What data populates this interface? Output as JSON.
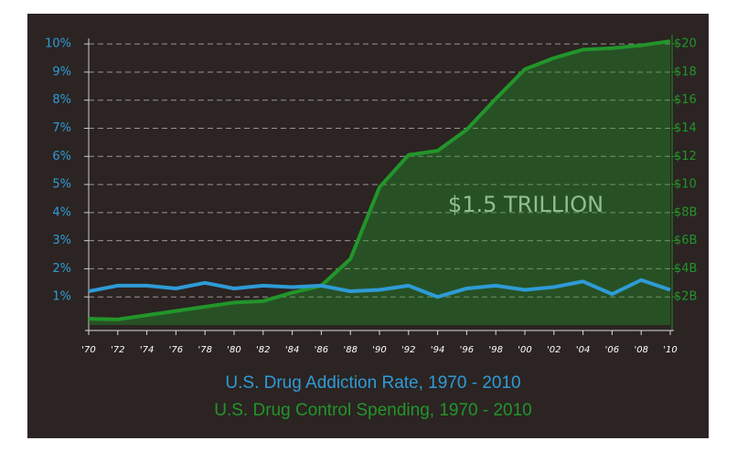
{
  "chart_data": {
    "type": "line",
    "annotation": "$1.5 TRILLION",
    "categories": [
      "'70",
      "'72",
      "'74",
      "'76",
      "'78",
      "'80",
      "'82",
      "'84",
      "'86",
      "'88",
      "'90",
      "'92",
      "'94",
      "'96",
      "'98",
      "'00",
      "'02",
      "'04",
      "'06",
      "'08",
      "'10"
    ],
    "series": [
      {
        "name": "U.S. Drug Addiction Rate, 1970 - 2010",
        "color": "#2f9bd7",
        "values": [
          1.2,
          1.4,
          1.4,
          1.3,
          1.5,
          1.3,
          1.4,
          1.35,
          1.4,
          1.2,
          1.25,
          1.4,
          1.0,
          1.3,
          1.4,
          1.25,
          1.35,
          1.55,
          1.1,
          1.6,
          1.25
        ]
      },
      {
        "name": "U.S. Drug Control Spending, 1970 - 2010",
        "color": "#22952a",
        "axis": "y2",
        "values": [
          0.45,
          0.4,
          0.7,
          1.0,
          1.3,
          1.6,
          1.7,
          2.3,
          2.8,
          4.7,
          9.8,
          12.1,
          12.4,
          13.9,
          16.1,
          18.2,
          19.0,
          19.6,
          19.7,
          19.9,
          20.2
        ]
      }
    ],
    "ylim": [
      0,
      10.2
    ],
    "yticks": [
      {
        "value": 1,
        "label": "1%"
      },
      {
        "value": 2,
        "label": "2%"
      },
      {
        "value": 3,
        "label": "3%"
      },
      {
        "value": 4,
        "label": "4%"
      },
      {
        "value": 5,
        "label": "5%"
      },
      {
        "value": 6,
        "label": "6%"
      },
      {
        "value": 7,
        "label": "7%"
      },
      {
        "value": 8,
        "label": "8%"
      },
      {
        "value": 9,
        "label": "9%"
      },
      {
        "value": 10,
        "label": "10%"
      }
    ],
    "y2lim": [
      0,
      20.4
    ],
    "y2ticks": [
      {
        "value": 2,
        "label": "$2B"
      },
      {
        "value": 4,
        "label": "$4B"
      },
      {
        "value": 6,
        "label": "$6B"
      },
      {
        "value": 8,
        "label": "$8B"
      },
      {
        "value": 10,
        "label": "$10"
      },
      {
        "value": 12,
        "label": "$12"
      },
      {
        "value": 14,
        "label": "$14"
      },
      {
        "value": 16,
        "label": "$16"
      },
      {
        "value": 18,
        "label": "$18"
      },
      {
        "value": 20,
        "label": "$20"
      }
    ],
    "grid": true
  }
}
